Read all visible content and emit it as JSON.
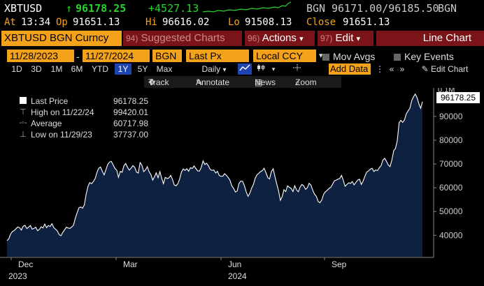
{
  "quote": {
    "ticker": "XBTUSD",
    "arrow": "↑",
    "last": "96178.25",
    "change": "+4527.13",
    "source": "BGN",
    "bid_ask": "96171.00/96185.50",
    "source2": "BGN"
  },
  "quote2": {
    "at_label": "At",
    "time": "13:34",
    "op_label": "Op",
    "open": "91651.13",
    "hi_label": "Hi",
    "high": "96616.02",
    "lo_label": "Lo",
    "low": "91508.13",
    "close_label": "Close",
    "close": "91651.13"
  },
  "menubar": {
    "security": "XBTUSD BGN Curncy",
    "suggested_fn": "94)",
    "suggested": "Suggested Charts",
    "actions_fn": "96)",
    "actions": "Actions",
    "edit_fn": "97)",
    "edit": "Edit",
    "caret": "▾",
    "line_chart": "Line Chart"
  },
  "params": {
    "start": "11/28/2023",
    "dash": "-",
    "end": "11/27/2024",
    "source": "BGN",
    "field": "Last Px",
    "currency": "Local CCY",
    "mov_avgs": "Mov Avgs",
    "key_events": "Key Events"
  },
  "periods": [
    "1D",
    "3D",
    "1M",
    "6M",
    "YTD",
    "1Y",
    "5Y",
    "Max"
  ],
  "selected_period": "1Y",
  "frequency": "Daily",
  "add_data": "Add Data",
  "edit_chart": "Edit Chart",
  "toolbar": {
    "track": "Track",
    "annotate": "Annotate",
    "news": "News",
    "zoom": "Zoom"
  },
  "legend": {
    "last_label": "Last Price",
    "last_value": "96178.25",
    "high_label": "High on 11/22/24",
    "high_value": "99420.01",
    "avg_label": "Average",
    "avg_value": "60717.98",
    "low_label": "Low on 11/29/23",
    "low_value": "37737.00"
  },
  "last_tag": "96178.25",
  "colors": {
    "accent": "#f4a21b",
    "menu_red": "#7a1418",
    "area_fill": "#0f2140",
    "line": "#ffffff",
    "up_green": "#27d42f"
  },
  "chart_data": {
    "type": "area",
    "y_unit_top": "0.1M",
    "y_ticks": [
      40000,
      50000,
      60000,
      70000,
      80000,
      90000
    ],
    "y_tick_labels": [
      "40000",
      "50000",
      "60000",
      "70000",
      "80000",
      "90000"
    ],
    "ylim": [
      31000,
      102000
    ],
    "x_ticks": [
      "Dec",
      "Mar",
      "Jun",
      "Sep"
    ],
    "x_years": [
      "2023",
      "2024"
    ],
    "series": [
      {
        "values": [
          37737,
          38500,
          40500,
          41600,
          42000,
          42800,
          43500,
          43200,
          42200,
          43800,
          44200,
          42800,
          43400,
          44100,
          42600,
          42900,
          43400,
          41900,
          42500,
          43600,
          43100,
          44700,
          43200,
          44100,
          43700,
          44900,
          43200,
          42600,
          41800,
          40300,
          39800,
          41200,
          42300,
          43400,
          43100,
          42900,
          43500,
          44300,
          47200,
          49500,
          51600,
          51900,
          51400,
          52800,
          57200,
          60500,
          62200,
          61700,
          62600,
          63800,
          66400,
          68200,
          68700,
          66900,
          65400,
          67600,
          69800,
          70800,
          71100,
          69700,
          68100,
          67400,
          64400,
          66900,
          66500,
          69200,
          70200,
          68600,
          67400,
          68200,
          69300,
          68600,
          66600,
          66200,
          70600,
          69500,
          66800,
          67500,
          68900,
          66800,
          65600,
          63200,
          64600,
          66300,
          64200,
          66800,
          64100,
          61700,
          64400,
          63900,
          64100,
          65200,
          63500,
          61200,
          60800,
          61700,
          63700,
          66600,
          67900,
          67300,
          68000,
          66900,
          68400,
          68100,
          69200,
          68100,
          67100,
          67000,
          68500,
          71300,
          69800,
          70300,
          69200,
          67700,
          67300,
          67500,
          66200,
          66900,
          65200,
          64800,
          64900,
          65900,
          65200,
          64300,
          63100,
          60800,
          59700,
          58200,
          58600,
          61800,
          62800,
          62700,
          60900,
          58300,
          56400,
          57600,
          59800,
          61400,
          64000,
          65400,
          66100,
          66800,
          67200,
          68200,
          66300,
          64200,
          63700,
          66800,
          68000,
          64700,
          61600,
          58600,
          54700,
          56200,
          59200,
          58400,
          60800,
          60200,
          59700,
          58400,
          60900,
          59100,
          58300,
          60300,
          61400,
          60800,
          59300,
          60000,
          61900,
          61100,
          59000,
          57300,
          56400,
          54200,
          53700,
          54800,
          57200,
          58300,
          58900,
          59700,
          60200,
          61400,
          62900,
          63200,
          63600,
          63900,
          65200,
          63100,
          60600,
          61400,
          62100,
          61800,
          62600,
          61200,
          62300,
          63200,
          63600,
          61400,
          62800,
          64800,
          66600,
          67100,
          67800,
          68200,
          66800,
          67500,
          67200,
          68400,
          69300,
          71600,
          72400,
          71100,
          69600,
          68900,
          71700,
          75600,
          76500,
          79800,
          87300,
          88400,
          87500,
          88500,
          91100,
          92300,
          93400,
          96600,
          98200,
          99420,
          97900,
          95300,
          93400,
          96178
        ],
        "start": "2023-11-28",
        "end": "2024-11-27"
      }
    ]
  }
}
